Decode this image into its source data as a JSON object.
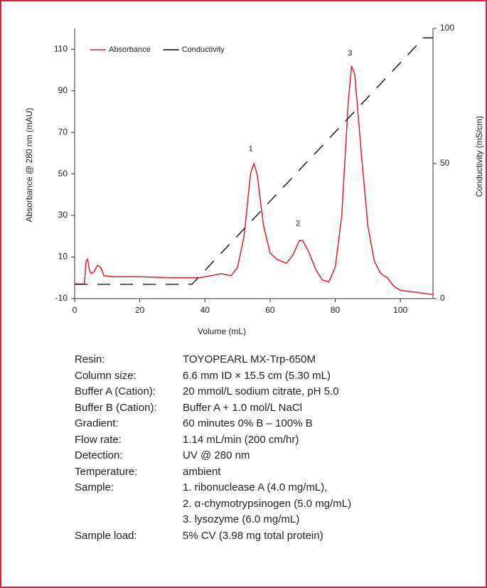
{
  "chart_data": {
    "type": "line",
    "xlabel": "Volume (mL)",
    "ylabel": "Absorbance @ 280 nm (mAU)",
    "y2label": "Conductivity (mS/cm)",
    "xlim": [
      0,
      110
    ],
    "xticks": [
      0,
      20,
      40,
      60,
      80,
      100
    ],
    "ylim": [
      -10,
      120
    ],
    "yticks": [
      -10,
      10,
      30,
      50,
      70,
      90,
      110
    ],
    "y2lim": [
      0,
      100
    ],
    "y2ticks": [
      0,
      50,
      100
    ],
    "legend": "top-left",
    "annotations": [
      "1",
      "2",
      "3"
    ],
    "series": [
      {
        "name": "Absorbance",
        "color": "#e0202a",
        "x": [
          0,
          3,
          3.5,
          4,
          4.5,
          5,
          6,
          7,
          8,
          9,
          12,
          20,
          30,
          38,
          42,
          45,
          48,
          50,
          52,
          54,
          55,
          56,
          58,
          60,
          62,
          65,
          67,
          69,
          70,
          72,
          74,
          76,
          78,
          80,
          82,
          84,
          85,
          86,
          88,
          90,
          92,
          94,
          96,
          98,
          100,
          105,
          110
        ],
        "values": [
          -3,
          -3,
          8,
          9,
          4,
          2,
          3,
          6,
          5,
          1,
          0.5,
          0.5,
          0,
          0,
          1,
          2,
          1,
          5,
          20,
          50,
          55,
          50,
          25,
          12,
          9,
          7,
          11,
          18,
          18,
          12,
          4,
          -1,
          -2,
          5,
          30,
          85,
          102,
          98,
          60,
          25,
          8,
          2,
          0,
          -4,
          -6,
          -7,
          -8
        ]
      },
      {
        "name": "Conductivity",
        "color": "#000000",
        "axis": "y2",
        "dash": true,
        "x": [
          0,
          36,
          106,
          107,
          110
        ],
        "values": [
          5.3,
          5.3,
          95,
          96.5,
          96.5
        ]
      }
    ]
  },
  "conditions": [
    {
      "label": "Resin:",
      "value": [
        "TOYOPEARL MX-Trp-650M"
      ]
    },
    {
      "label": "Column size:",
      "value": [
        "6.6 mm ID × 15.5 cm (5.30 mL)"
      ]
    },
    {
      "label": "Buffer A (Cation):",
      "value": [
        "20 mmol/L sodium citrate, pH 5.0"
      ]
    },
    {
      "label": "Buffer B (Cation):",
      "value": [
        "Buffer A + 1.0 mol/L NaCl"
      ]
    },
    {
      "label": "Gradient:",
      "value": [
        "60 minutes 0% B – 100% B"
      ]
    },
    {
      "label": "Flow rate:",
      "value": [
        "1.14 mL/min (200 cm/hr)"
      ]
    },
    {
      "label": "Detection:",
      "value": [
        "UV @ 280 nm"
      ]
    },
    {
      "label": "Temperature:",
      "value": [
        "ambient"
      ]
    },
    {
      "label": "Sample:",
      "value": [
        "1. ribonuclease A (4.0 mg/mL),",
        "2. α-chymotrypsinogen (5.0 mg/mL)",
        "3. lysozyme (6.0 mg/mL)"
      ]
    },
    {
      "label": "Sample load:",
      "value": [
        "5% CV (3.98 mg total protein)"
      ]
    }
  ]
}
